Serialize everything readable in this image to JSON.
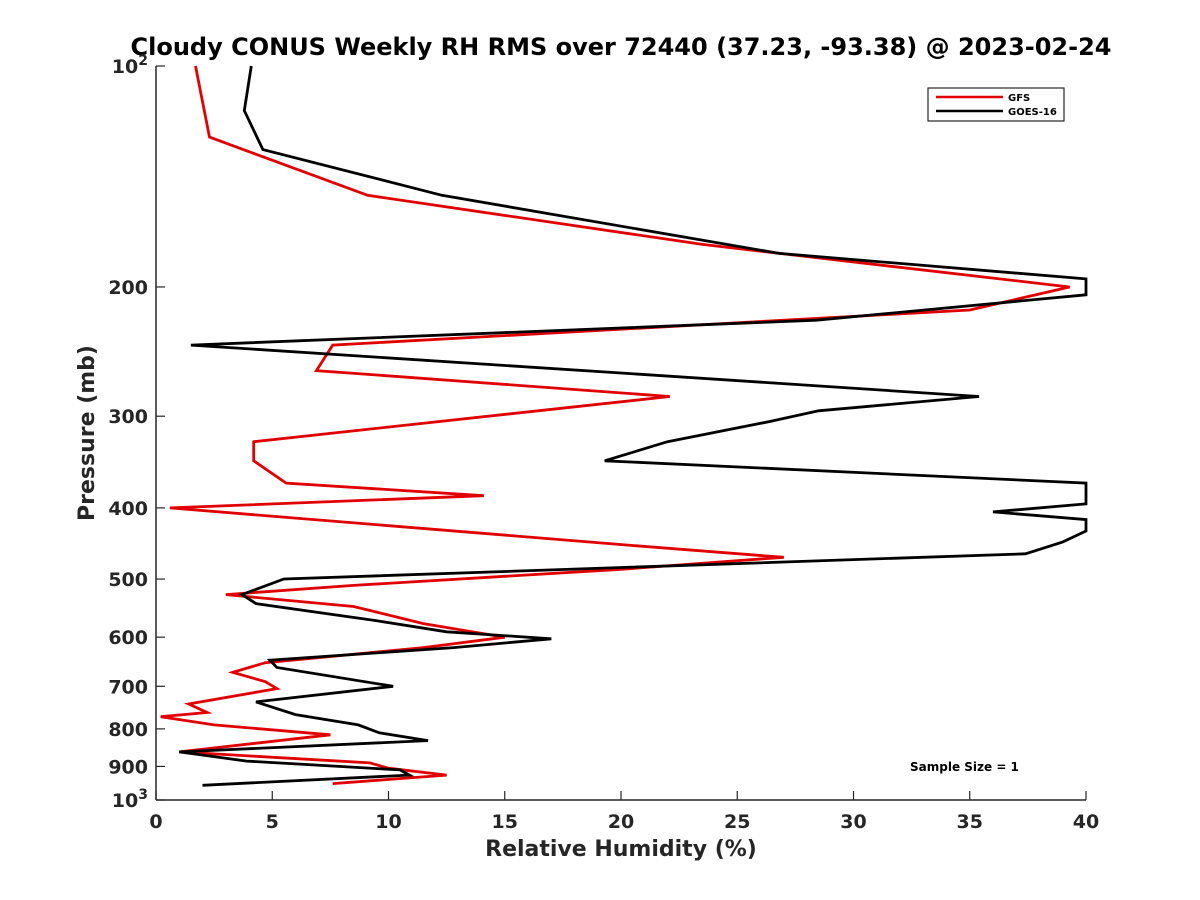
{
  "chart_data": {
    "type": "line",
    "title": "Cloudy CONUS Weekly RH RMS over 72440 (37.23, -93.38) @ 2023-02-24",
    "xlabel": "Relative Humidity (%)",
    "ylabel": "Pressure (mb)",
    "xlim": [
      0,
      40
    ],
    "ylim": [
      100,
      1000
    ],
    "y_scale": "log",
    "y_reversed": true,
    "x_ticks": [
      {
        "value": 0,
        "label": "0"
      },
      {
        "value": 5,
        "label": "5"
      },
      {
        "value": 10,
        "label": "10"
      },
      {
        "value": 15,
        "label": "15"
      },
      {
        "value": 20,
        "label": "20"
      },
      {
        "value": 25,
        "label": "25"
      },
      {
        "value": 30,
        "label": "30"
      },
      {
        "value": 35,
        "label": "35"
      },
      {
        "value": 40,
        "label": "40"
      }
    ],
    "y_ticks": [
      {
        "value": 100,
        "base": "10",
        "exp": "2"
      },
      {
        "value": 200,
        "label": "200"
      },
      {
        "value": 300,
        "label": "300"
      },
      {
        "value": 400,
        "label": "400"
      },
      {
        "value": 500,
        "label": "500"
      },
      {
        "value": 600,
        "label": "600"
      },
      {
        "value": 700,
        "label": "700"
      },
      {
        "value": 800,
        "label": "800"
      },
      {
        "value": 900,
        "label": "900"
      },
      {
        "value": 1000,
        "base": "10",
        "exp": "3"
      }
    ],
    "grid": false,
    "legend_position": "top-right",
    "annotation": "Sample Size = 1",
    "series": [
      {
        "name": "GFS",
        "color": "#e00000",
        "points": [
          [
            1.7,
            100
          ],
          [
            2.3,
            125
          ],
          [
            9.1,
            150
          ],
          [
            23.5,
            175
          ],
          [
            39.3,
            200
          ],
          [
            35.0,
            215
          ],
          [
            7.6,
            240
          ],
          [
            6.9,
            260
          ],
          [
            22.1,
            282
          ],
          [
            4.2,
            325
          ],
          [
            4.2,
            345
          ],
          [
            5.6,
            370
          ],
          [
            14.1,
            385
          ],
          [
            0.6,
            400
          ],
          [
            20.5,
            450
          ],
          [
            27.0,
            467
          ],
          [
            20.0,
            485
          ],
          [
            8.5,
            510
          ],
          [
            3.0,
            525
          ],
          [
            8.5,
            545
          ],
          [
            11.5,
            575
          ],
          [
            15.0,
            600
          ],
          [
            11.5,
            620
          ],
          [
            4.7,
            650
          ],
          [
            3.3,
            670
          ],
          [
            4.7,
            690
          ],
          [
            5.2,
            705
          ],
          [
            1.4,
            740
          ],
          [
            2.2,
            760
          ],
          [
            0.2,
            770
          ],
          [
            2.5,
            790
          ],
          [
            7.5,
            815
          ],
          [
            1.0,
            860
          ],
          [
            9.2,
            890
          ],
          [
            10.0,
            905
          ],
          [
            12.5,
            925
          ],
          [
            7.6,
            950
          ]
        ]
      },
      {
        "name": "GOES-16",
        "color": "#000000",
        "points": [
          [
            4.1,
            100
          ],
          [
            3.8,
            115
          ],
          [
            4.6,
            130
          ],
          [
            12.3,
            150
          ],
          [
            26.8,
            180
          ],
          [
            40.0,
            195
          ],
          [
            40.0,
            205
          ],
          [
            28.4,
            222
          ],
          [
            1.5,
            240
          ],
          [
            20.0,
            262
          ],
          [
            35.4,
            282
          ],
          [
            28.5,
            295
          ],
          [
            26.4,
            305
          ],
          [
            22.0,
            325
          ],
          [
            19.3,
            345
          ],
          [
            40.0,
            370
          ],
          [
            40.0,
            395
          ],
          [
            36.0,
            405
          ],
          [
            40.0,
            415
          ],
          [
            40.0,
            430
          ],
          [
            39.0,
            445
          ],
          [
            37.4,
            462
          ],
          [
            5.5,
            500
          ],
          [
            3.7,
            525
          ],
          [
            4.3,
            540
          ],
          [
            9.5,
            570
          ],
          [
            12.5,
            590
          ],
          [
            17.0,
            603
          ],
          [
            12.8,
            620
          ],
          [
            4.9,
            645
          ],
          [
            5.2,
            660
          ],
          [
            10.2,
            700
          ],
          [
            4.3,
            735
          ],
          [
            6.0,
            765
          ],
          [
            8.7,
            790
          ],
          [
            9.6,
            810
          ],
          [
            11.7,
            830
          ],
          [
            1.0,
            860
          ],
          [
            3.9,
            885
          ],
          [
            10.5,
            910
          ],
          [
            10.9,
            925
          ],
          [
            2.0,
            955
          ]
        ]
      }
    ]
  }
}
